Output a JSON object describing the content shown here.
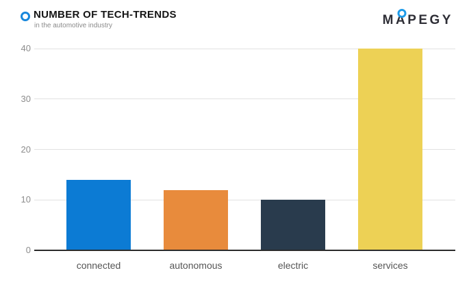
{
  "header": {
    "title": "NUMBER OF TECH-TRENDS",
    "subtitle": "in the automotive industry",
    "accent_color": "#1787DC"
  },
  "logo": {
    "part1": "M",
    "ring_letter": "A",
    "part2": "PEGY",
    "full_text": "MAPEGY",
    "text_color": "#2E2E36",
    "ring_color": "#1E9BE9"
  },
  "chart_data": {
    "type": "bar",
    "title": "NUMBER OF TECH-TRENDS",
    "subtitle": "in the automotive industry",
    "categories": [
      "connected",
      "autonomous",
      "electric",
      "services"
    ],
    "values": [
      14,
      12,
      10,
      40
    ],
    "bar_colors": [
      "#0C7BD4",
      "#E88B3C",
      "#293B4D",
      "#EDD155"
    ],
    "xlabel": "",
    "ylabel": "",
    "ylim": [
      0,
      40
    ],
    "yticks": [
      0,
      10,
      20,
      30,
      40
    ],
    "grid": true,
    "legend": false,
    "grid_color": "#E1E1E1",
    "axis_line_color": "#2B2B2B",
    "ytick_color": "#8C8C8C",
    "xtick_color": "#555555"
  }
}
